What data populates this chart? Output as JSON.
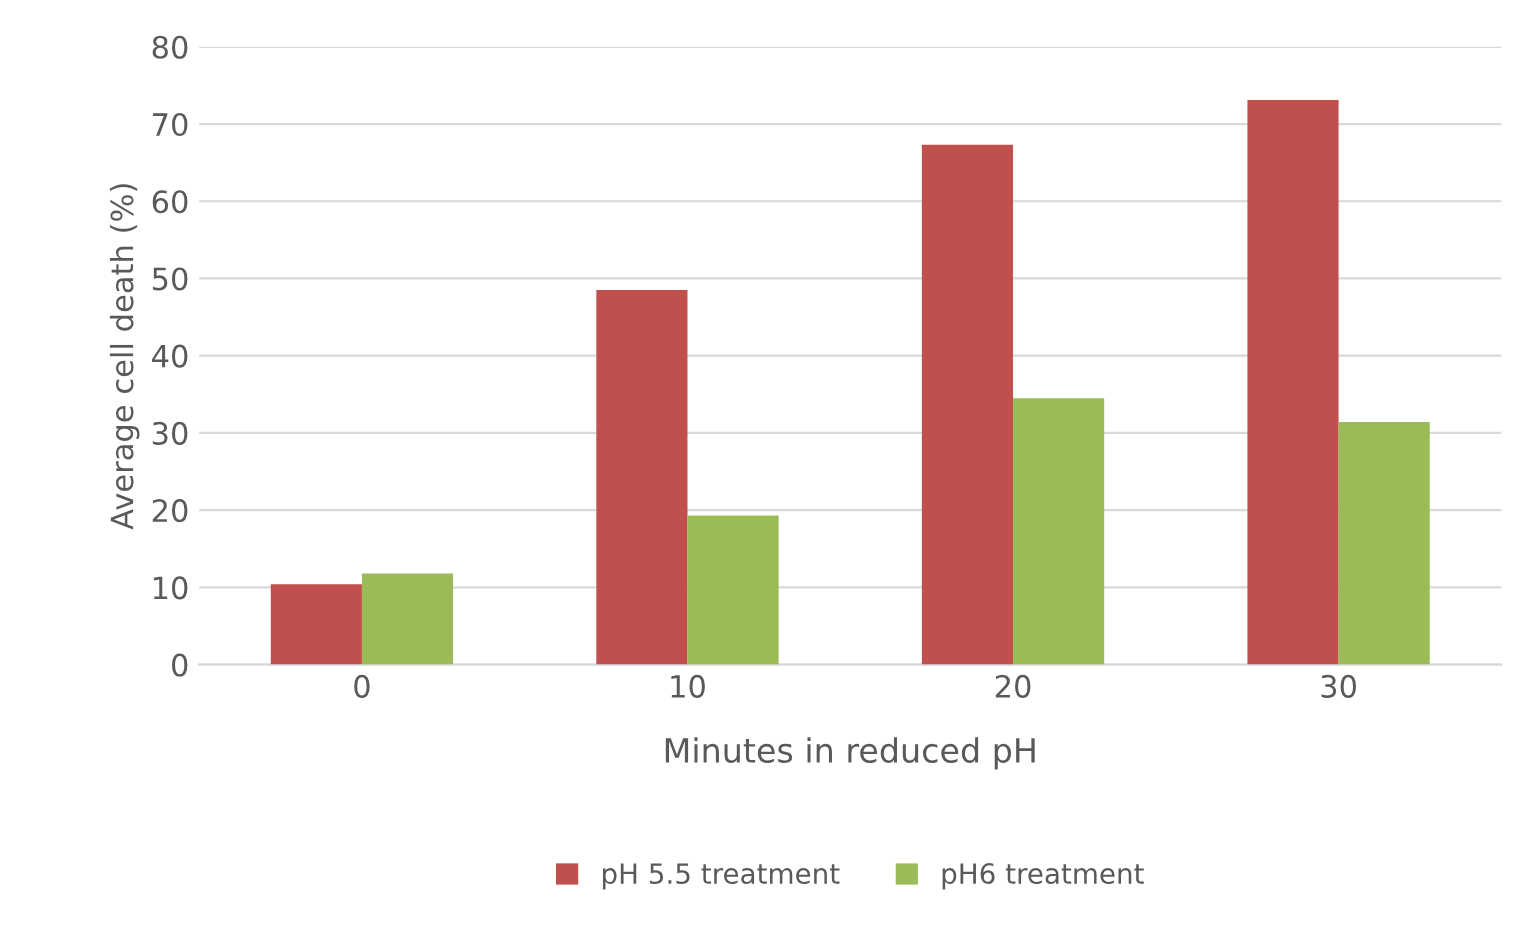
{
  "chart_data": {
    "type": "bar",
    "xlabel": "Minutes in reduced pH",
    "ylabel": "Average cell death (%)",
    "categories": [
      "0",
      "10",
      "20",
      "30"
    ],
    "series": [
      {
        "name": "pH 5.5 treatment",
        "color": "#c0504d",
        "values": [
          10.4,
          48.5,
          67.3,
          73.1
        ]
      },
      {
        "name": "pH6 treatment",
        "color": "#9bbb59",
        "values": [
          11.8,
          19.3,
          34.5,
          31.4
        ]
      }
    ],
    "ylim": [
      0,
      80
    ],
    "yticks": [
      0,
      10,
      20,
      30,
      40,
      50,
      60,
      70,
      80
    ],
    "grid": "y",
    "legend": "bottom"
  }
}
